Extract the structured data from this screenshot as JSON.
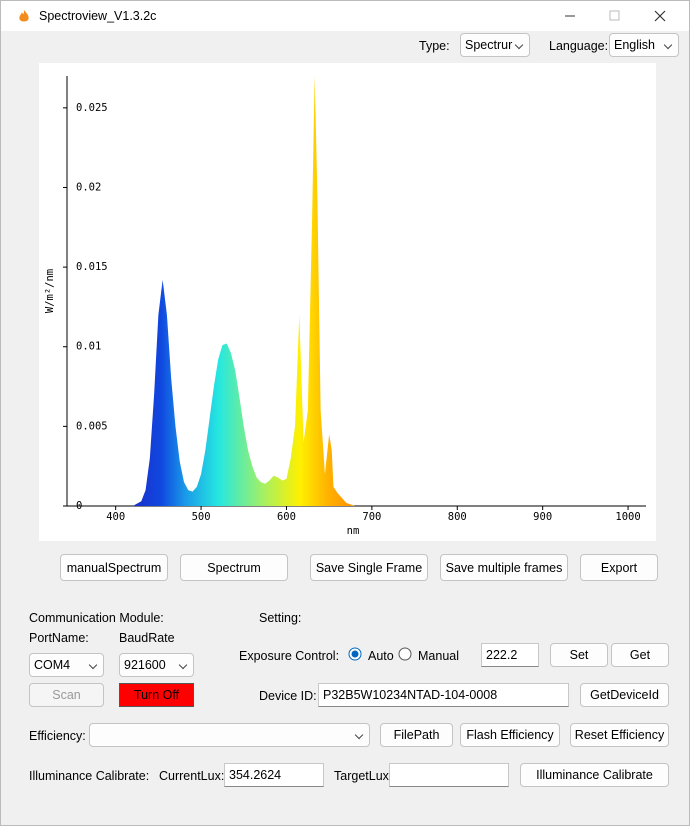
{
  "window": {
    "title": "Spectroview_V1.3.2c"
  },
  "toolbar": {
    "type_label": "Type:",
    "type_value": "Spectrur",
    "language_label": "Language:",
    "language_value": "English"
  },
  "chart_data": {
    "type": "area",
    "x_label": "nm",
    "y_label": "W/m²/nm",
    "x": [
      420,
      430,
      435,
      440,
      445,
      450,
      455,
      460,
      465,
      470,
      475,
      480,
      485,
      490,
      495,
      500,
      505,
      510,
      515,
      520,
      525,
      530,
      535,
      540,
      545,
      550,
      555,
      560,
      565,
      570,
      575,
      580,
      585,
      590,
      595,
      600,
      605,
      610,
      615,
      620,
      625,
      630,
      633,
      636,
      640,
      645,
      650,
      653,
      655,
      660,
      665,
      670,
      680,
      700
    ],
    "values": [
      0,
      0.0003,
      0.001,
      0.003,
      0.007,
      0.012,
      0.0142,
      0.012,
      0.008,
      0.005,
      0.0028,
      0.0015,
      0.001,
      0.0009,
      0.0012,
      0.002,
      0.0035,
      0.0055,
      0.0075,
      0.0092,
      0.0101,
      0.0102,
      0.0096,
      0.0085,
      0.0068,
      0.005,
      0.0035,
      0.0025,
      0.0018,
      0.0015,
      0.0014,
      0.0016,
      0.0019,
      0.0018,
      0.0016,
      0.0017,
      0.003,
      0.005,
      0.012,
      0.004,
      0.006,
      0.018,
      0.027,
      0.02,
      0.006,
      0.002,
      0.0045,
      0.0035,
      0.0012,
      0.0008,
      0.0005,
      0.0002,
      0,
      0
    ],
    "xlim": [
      343,
      1021
    ],
    "ylim": [
      0,
      0.027
    ],
    "xticks": [
      400,
      500,
      600,
      700,
      800,
      900,
      1000
    ],
    "yticks": [
      0,
      0.005,
      0.01,
      0.015,
      0.02,
      0.025
    ]
  },
  "buttons": [
    "manualSpectrum",
    "Spectrum",
    "Save Single Frame",
    "Save multiple frames",
    "Export"
  ],
  "communication": {
    "title": "Communication Module:",
    "port_label": "PortName:",
    "baud_label": "BaudRate",
    "port_value": "COM4",
    "baud_value": "921600",
    "scan": "Scan",
    "turn_off": "Turn Off"
  },
  "setting": {
    "title": "Setting:",
    "exposure_label": "Exposure Control:",
    "auto": "Auto",
    "manual": "Manual",
    "exposure_value": "222.2",
    "set": "Set",
    "get": "Get",
    "device_label": "Device ID:",
    "device_value": "P32B5W10234NTAD-104-0008",
    "get_device": "GetDeviceId"
  },
  "efficiency": {
    "label": "Efficiency:",
    "file_path": "FilePath",
    "flash": "Flash Efficiency",
    "reset": "Reset Efficiency"
  },
  "illuminance": {
    "label": "Illuminance Calibrate:",
    "current_label": "CurrentLux:",
    "current_value": "354.2624",
    "target_label": "TargetLux:",
    "button": "Illuminance Calibrate"
  }
}
